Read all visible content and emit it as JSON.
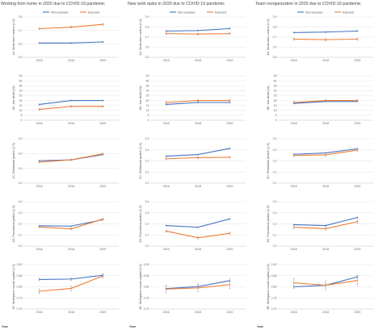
{
  "figure": {
    "column_titles": [
      "Working from home in 2020 due to COVID-19 pandemic",
      "New work tasks in 2020 due to COVID-19 pandemic",
      "Team reorganization in 2020 due to COVID-19 pandemic"
    ],
    "x_label": "Year"
  },
  "colors": {
    "non_exposed": "#4472c4",
    "exposed": "#ed7d31"
  },
  "chart_data": [
    {
      "type": "line",
      "col": 0,
      "row": 0,
      "ylabel": "1A. Work-time control (1-5)",
      "ylim": [
        3.5,
        3.8
      ],
      "yticks": [
        "3.5",
        "3.6",
        "3.7",
        "3.8"
      ],
      "categories": [
        "2016",
        "2018",
        "2020"
      ],
      "legend": [
        "Non-exposed",
        "Exposed"
      ],
      "series": [
        {
          "name": "Non-exposed",
          "values": [
            3.606,
            3.606,
            3.614
          ],
          "err": [
            0.004,
            0.004,
            0.004
          ]
        },
        {
          "name": "Exposed",
          "values": [
            3.713,
            3.724,
            3.745
          ],
          "err": [
            0.006,
            0.006,
            0.006
          ]
        }
      ]
    },
    {
      "type": "line",
      "col": 1,
      "row": 0,
      "ylabel": "2A. Work-time control (1-5)",
      "ylim": [
        3.5,
        3.9
      ],
      "yticks": [
        "3.5",
        "3.6",
        "3.7",
        "3.8",
        "3.9"
      ],
      "categories": [
        "2016",
        "2018",
        "2020"
      ],
      "legend": [
        "Non-exposed",
        "Exposed"
      ],
      "series": [
        {
          "name": "Non-exposed",
          "values": [
            3.76,
            3.765,
            3.785
          ],
          "err": [
            0.005,
            0.005,
            0.005
          ]
        },
        {
          "name": "Exposed",
          "values": [
            3.735,
            3.73,
            3.735
          ],
          "err": [
            0.008,
            0.008,
            0.008
          ]
        }
      ]
    },
    {
      "type": "line",
      "col": 2,
      "row": 0,
      "ylabel": "3A. Work-time control (1-5)",
      "ylim": [
        3.5,
        3.9
      ],
      "yticks": [
        "3.5",
        "3.6",
        "3.7",
        "3.8",
        "3.9"
      ],
      "categories": [
        "2016",
        "2018",
        "2020"
      ],
      "legend": [
        "Non-exposed",
        "Exposed"
      ],
      "series": [
        {
          "name": "Non-exposed",
          "values": [
            3.745,
            3.75,
            3.76
          ],
          "err": [
            0.005,
            0.005,
            0.005
          ]
        },
        {
          "name": "Exposed",
          "values": [
            3.68,
            3.675,
            3.68
          ],
          "err": [
            0.012,
            0.012,
            0.012
          ]
        }
      ]
    },
    {
      "type": "line",
      "col": 0,
      "row": 1,
      "ylabel": "1B. Job strain (%)",
      "ylim": [
        0,
        45
      ],
      "yticks": [
        "0",
        "5",
        "10",
        "15",
        "20",
        "25",
        "30",
        "35",
        "40",
        "45"
      ],
      "categories": [
        "2016",
        "2018",
        "2020"
      ],
      "series": [
        {
          "name": "Non-exposed",
          "values": [
            16,
            20,
            20
          ],
          "err": [
            0.5,
            0.5,
            0.5
          ]
        },
        {
          "name": "Exposed",
          "values": [
            11,
            14,
            14
          ],
          "err": [
            0.7,
            0.7,
            0.7
          ]
        }
      ]
    },
    {
      "type": "line",
      "col": 1,
      "row": 1,
      "ylabel": "2B. Job strain (%)",
      "ylim": [
        0,
        45
      ],
      "yticks": [
        "0",
        "5",
        "10",
        "15",
        "20",
        "25",
        "30",
        "35",
        "40",
        "45"
      ],
      "categories": [
        "2016",
        "2018",
        "2020"
      ],
      "series": [
        {
          "name": "Non-exposed",
          "values": [
            16,
            18,
            18
          ],
          "err": [
            0.5,
            0.5,
            0.5
          ]
        },
        {
          "name": "Exposed",
          "values": [
            18,
            20,
            20
          ],
          "err": [
            0.9,
            0.9,
            0.9
          ]
        }
      ]
    },
    {
      "type": "line",
      "col": 2,
      "row": 1,
      "ylabel": "3B. Job strain (%)",
      "ylim": [
        0,
        45
      ],
      "yticks": [
        "0",
        "5",
        "10",
        "15",
        "20",
        "25",
        "30",
        "35",
        "40",
        "45"
      ],
      "categories": [
        "2016",
        "2018",
        "2020"
      ],
      "series": [
        {
          "name": "Non-exposed",
          "values": [
            17,
            19,
            19
          ],
          "err": [
            0.5,
            0.5,
            0.5
          ]
        },
        {
          "name": "Exposed",
          "values": [
            18,
            20,
            20
          ],
          "err": [
            1.2,
            1.2,
            1.2
          ]
        }
      ]
    },
    {
      "type": "line",
      "col": 0,
      "row": 2,
      "ylabel": "1C. Relational justice (1-5)",
      "ylim": [
        3.2,
        3.5
      ],
      "yticks": [
        "3.2",
        "3.3",
        "3.4",
        "3.5"
      ],
      "categories": [
        "2016",
        "2018",
        "2020"
      ],
      "series": [
        {
          "name": "Non-exposed",
          "values": [
            3.352,
            3.357,
            3.393
          ],
          "err": [
            0.003,
            0.003,
            0.003
          ]
        },
        {
          "name": "Exposed",
          "values": [
            3.342,
            3.358,
            3.398
          ],
          "err": [
            0.005,
            0.005,
            0.005
          ]
        }
      ]
    },
    {
      "type": "line",
      "col": 1,
      "row": 2,
      "ylabel": "2C. Relational justice (1-5)",
      "ylim": [
        3.1,
        3.5
      ],
      "yticks": [
        "3.1",
        "3.2",
        "3.3",
        "3.4",
        "3.5"
      ],
      "categories": [
        "2016",
        "2018",
        "2020"
      ],
      "series": [
        {
          "name": "Non-exposed",
          "values": [
            3.343,
            3.358,
            3.413
          ],
          "err": [
            0.004,
            0.004,
            0.004
          ]
        },
        {
          "name": "Exposed",
          "values": [
            3.32,
            3.33,
            3.333
          ],
          "err": [
            0.008,
            0.008,
            0.008
          ]
        }
      ]
    },
    {
      "type": "line",
      "col": 2,
      "row": 2,
      "ylabel": "3C. Relational justice (1-5)",
      "ylim": [
        3.1,
        3.5
      ],
      "yticks": [
        "3.1",
        "3.2",
        "3.3",
        "3.4",
        "3.5"
      ],
      "categories": [
        "2016",
        "2018",
        "2020"
      ],
      "series": [
        {
          "name": "Non-exposed",
          "values": [
            3.36,
            3.372,
            3.41
          ],
          "err": [
            0.004,
            0.004,
            0.004
          ]
        },
        {
          "name": "Exposed",
          "values": [
            3.35,
            3.355,
            3.398
          ],
          "err": [
            0.014,
            0.014,
            0.014
          ]
        }
      ]
    },
    {
      "type": "line",
      "col": 0,
      "row": 3,
      "ylabel": "1D. Procedural justice (1-5)",
      "ylim": [
        3.0,
        3.4
      ],
      "yticks": [
        "3.0",
        "3.1",
        "3.2",
        "3.3",
        "3.4"
      ],
      "categories": [
        "2016",
        "2018",
        "2020"
      ],
      "series": [
        {
          "name": "Non-exposed",
          "values": [
            3.183,
            3.18,
            3.238
          ],
          "err": [
            0.004,
            0.004,
            0.004
          ]
        },
        {
          "name": "Exposed",
          "values": [
            3.172,
            3.155,
            3.243
          ],
          "err": [
            0.007,
            0.007,
            0.007
          ]
        }
      ]
    },
    {
      "type": "line",
      "col": 1,
      "row": 3,
      "ylabel": "2D. Procedural justice (1-5)",
      "ylim": [
        3.0,
        3.4
      ],
      "yticks": [
        "3.0",
        "3.1",
        "3.2",
        "3.3",
        "3.4"
      ],
      "categories": [
        "2016",
        "2018",
        "2020"
      ],
      "series": [
        {
          "name": "Non-exposed",
          "values": [
            3.185,
            3.17,
            3.245
          ],
          "err": [
            0.004,
            0.004,
            0.004
          ]
        },
        {
          "name": "Exposed",
          "values": [
            3.135,
            3.075,
            3.115
          ],
          "err": [
            0.01,
            0.01,
            0.01
          ]
        }
      ]
    },
    {
      "type": "line",
      "col": 2,
      "row": 3,
      "ylabel": "3D. Procedural justice (1-5)",
      "ylim": [
        3.0,
        3.4
      ],
      "yticks": [
        "3.0",
        "3.1",
        "3.2",
        "3.3",
        "3.4"
      ],
      "categories": [
        "2016",
        "2018",
        "2020"
      ],
      "series": [
        {
          "name": "Non-exposed",
          "values": [
            3.193,
            3.185,
            3.258
          ],
          "err": [
            0.004,
            0.004,
            0.004
          ]
        },
        {
          "name": "Exposed",
          "values": [
            3.17,
            3.157,
            3.22
          ],
          "err": [
            0.015,
            0.015,
            0.015
          ]
        }
      ]
    },
    {
      "type": "line",
      "col": 0,
      "row": 4,
      "ylabel": "1E. Workplace social capital (1-5)",
      "ylim": [
        3.7,
        3.9
      ],
      "yticks": [
        "3.70",
        "3.75",
        "3.80",
        "3.85",
        "3.90"
      ],
      "categories": [
        "2016",
        "2018",
        "2020"
      ],
      "series": [
        {
          "name": "Non-exposed",
          "values": [
            3.833,
            3.835,
            3.852
          ],
          "err": [
            0.006,
            0.006,
            0.006
          ]
        },
        {
          "name": "Exposed",
          "values": [
            3.78,
            3.793,
            3.849
          ],
          "err": [
            0.01,
            0.01,
            0.01
          ]
        }
      ]
    },
    {
      "type": "line",
      "col": 1,
      "row": 4,
      "ylabel": "2E. Workplace social capital (1-5)",
      "ylim": [
        3.7,
        3.9
      ],
      "yticks": [
        "3.70",
        "3.75",
        "3.80",
        "3.85",
        "3.90"
      ],
      "categories": [
        "2016",
        "2018",
        "2020"
      ],
      "series": [
        {
          "name": "Non-exposed",
          "values": [
            3.792,
            3.801,
            3.828
          ],
          "err": [
            0.008,
            0.008,
            0.008
          ]
        },
        {
          "name": "Exposed",
          "values": [
            3.79,
            3.795,
            3.81
          ],
          "err": [
            0.018,
            0.018,
            0.018
          ]
        }
      ]
    },
    {
      "type": "line",
      "col": 2,
      "row": 4,
      "ylabel": "3E. Workplace social capital (1-5)",
      "ylim": [
        3.7,
        3.9
      ],
      "yticks": [
        "3.70",
        "3.75",
        "3.80",
        "3.85",
        "3.90"
      ],
      "categories": [
        "2016",
        "2018",
        "2020"
      ],
      "series": [
        {
          "name": "Non-exposed",
          "values": [
            3.8,
            3.807,
            3.845
          ],
          "err": [
            0.007,
            0.007,
            0.007
          ]
        },
        {
          "name": "Exposed",
          "values": [
            3.818,
            3.807,
            3.829
          ],
          "err": [
            0.02,
            0.02,
            0.02
          ]
        }
      ]
    }
  ]
}
